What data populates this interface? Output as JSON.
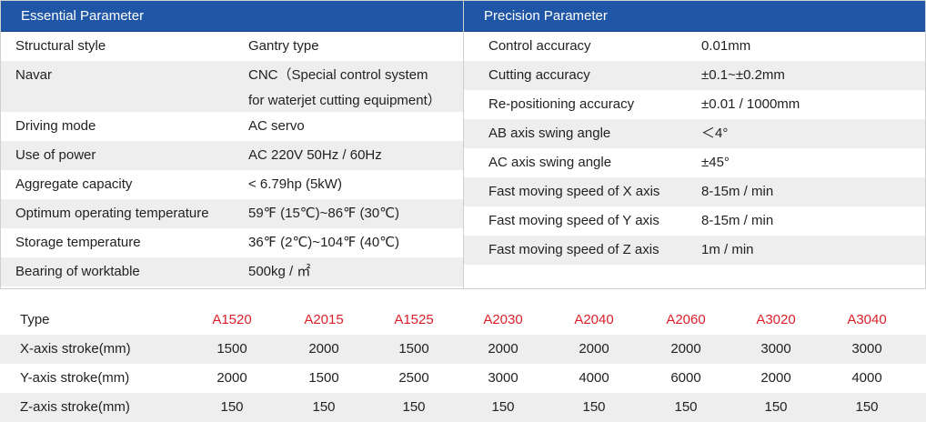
{
  "essential": {
    "title": "Essential Parameter",
    "rows": [
      {
        "label": "Structural style",
        "value": [
          "Gantry type"
        ]
      },
      {
        "label": "Navar",
        "value": [
          "CNC（Special control system",
          "for waterjet cutting equipment）"
        ]
      },
      {
        "label": "Driving mode",
        "value": [
          "AC servo"
        ]
      },
      {
        "label": "Use of power",
        "value": [
          "AC 220V 50Hz / 60Hz"
        ]
      },
      {
        "label": "Aggregate capacity",
        "value": [
          "< 6.79hp (5kW)"
        ]
      },
      {
        "label": "Optimum operating temperature",
        "value": [
          "59℉ (15℃)~86℉ (30℃)"
        ]
      },
      {
        "label": "Storage temperature",
        "value": [
          "36℉ (2℃)~104℉ (40℃)"
        ]
      },
      {
        "label": "Bearing of worktable",
        "value": [
          "500kg / ㎡"
        ]
      }
    ]
  },
  "precision": {
    "title": "Precision Parameter",
    "rows": [
      {
        "label": "Control accuracy",
        "value": "0.01mm"
      },
      {
        "label": "Cutting accuracy",
        "value": "±0.1~±0.2mm"
      },
      {
        "label": "Re-positioning accuracy",
        "value": "±0.01 / 1000mm"
      },
      {
        "label": "AB axis swing angle",
        "value": "＜4°"
      },
      {
        "label": "AC axis swing angle",
        "value": "±45°"
      },
      {
        "label": "Fast moving speed of X axis",
        "value": "8-15m / min"
      },
      {
        "label": "Fast moving speed of Y axis",
        "value": "8-15m / min"
      },
      {
        "label": "Fast moving speed of Z axis",
        "value": "1m / min"
      }
    ]
  },
  "models": {
    "header_label": "Type",
    "types": [
      "A1520",
      "A2015",
      "A1525",
      "A2030",
      "A2040",
      "A2060",
      "A3020",
      "A3040"
    ],
    "rows": [
      {
        "label": "X-axis stroke(mm)",
        "values": [
          "1500",
          "2000",
          "1500",
          "2000",
          "2000",
          "2000",
          "3000",
          "3000"
        ]
      },
      {
        "label": "Y-axis stroke(mm)",
        "values": [
          "2000",
          "1500",
          "2500",
          "3000",
          "4000",
          "6000",
          "2000",
          "4000"
        ]
      },
      {
        "label": "Z-axis stroke(mm)",
        "values": [
          "150",
          "150",
          "150",
          "150",
          "150",
          "150",
          "150",
          "150"
        ]
      }
    ]
  },
  "colors": {
    "header_bg": "#1f56a5",
    "accent_red": "#d9202a",
    "shade": "#eeeeee"
  }
}
